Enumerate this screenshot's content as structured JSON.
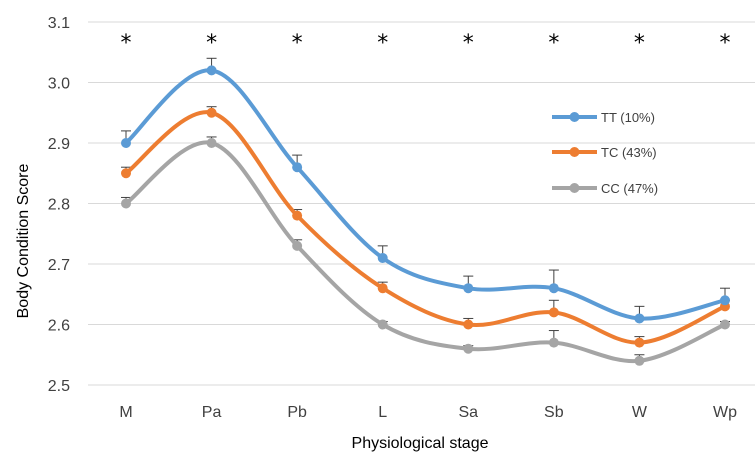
{
  "chart_data": {
    "type": "line",
    "categories": [
      "M",
      "Pa",
      "Pb",
      "L",
      "Sa",
      "Sb",
      "W",
      "Wp"
    ],
    "xlabel": "Physiological stage",
    "ylabel": "Body Condition Score",
    "ylim": [
      2.5,
      3.1
    ],
    "yticks": [
      "2.5",
      "2.6",
      "2.7",
      "2.8",
      "2.9",
      "3.0",
      "3.1"
    ],
    "grid": true,
    "legend_position": "right",
    "significance_marker": "*",
    "series": [
      {
        "name": "TT (10%)",
        "color": "#5b9bd5",
        "values": [
          2.9,
          3.02,
          2.86,
          2.71,
          2.66,
          2.66,
          2.61,
          2.64
        ],
        "error": [
          0.02,
          0.02,
          0.02,
          0.02,
          0.02,
          0.03,
          0.02,
          0.02
        ]
      },
      {
        "name": "TC (43%)",
        "color": "#ed7d31",
        "values": [
          2.85,
          2.95,
          2.78,
          2.66,
          2.6,
          2.62,
          2.57,
          2.63
        ],
        "error": [
          0.01,
          0.01,
          0.01,
          0.01,
          0.01,
          0.02,
          0.01,
          0.01
        ]
      },
      {
        "name": "CC (47%)",
        "color": "#a5a5a5",
        "values": [
          2.8,
          2.9,
          2.73,
          2.6,
          2.56,
          2.57,
          2.54,
          2.6
        ],
        "error": [
          0.01,
          0.01,
          0.01,
          0.005,
          0.005,
          0.02,
          0.01,
          0.005
        ]
      }
    ]
  }
}
